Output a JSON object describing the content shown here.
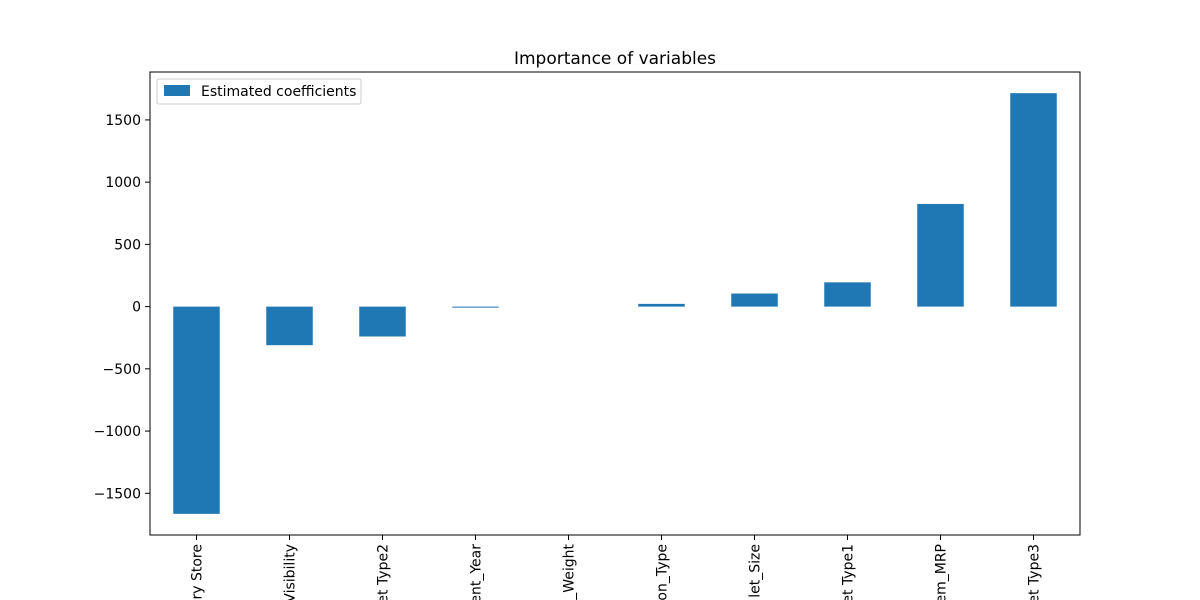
{
  "chart_data": {
    "type": "bar",
    "title": "Importance of variables",
    "xlabel": "",
    "ylabel": "",
    "categories": [
      "ry Store",
      "Visibility",
      "et Type2",
      "ent_Year",
      "_Weight",
      "on_Type",
      "let_Size",
      "et Type1",
      "em_MRP",
      "et Type3"
    ],
    "series": [
      {
        "name": "Estimated coefficients",
        "color": "#1f77b4",
        "values": [
          -1665,
          -310,
          -240,
          -8,
          0,
          22,
          105,
          195,
          825,
          1715
        ]
      }
    ],
    "ylim": [
      -1835,
      1885
    ],
    "yticks": [
      -1500,
      -1000,
      -500,
      0,
      500,
      1000,
      1500
    ],
    "ytick_labels": [
      "−1500",
      "−1000",
      "−500",
      "0",
      "500",
      "1000",
      "1500"
    ],
    "grid": false,
    "legend_position": "top-left"
  }
}
